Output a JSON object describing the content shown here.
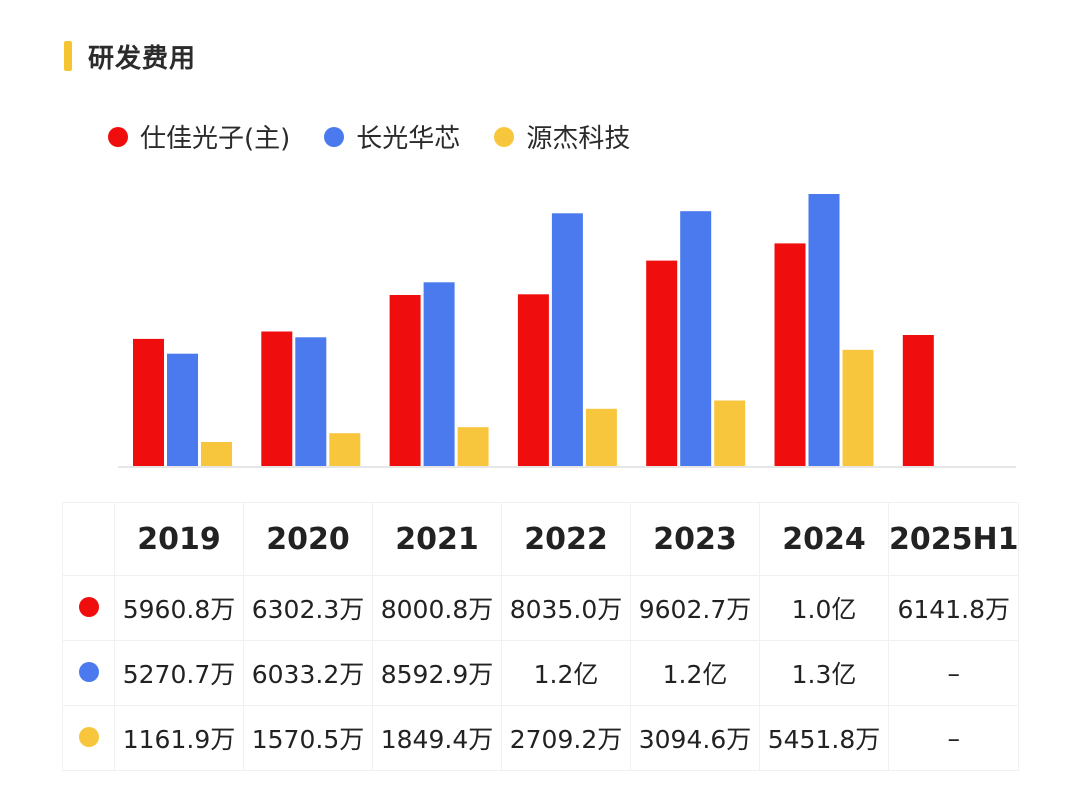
{
  "title": "研发费用",
  "colors": {
    "accent": "#f5c431",
    "red": "#f00d0d",
    "blue": "#4a7aed",
    "yellow": "#f8c63c"
  },
  "chart_data": {
    "type": "bar",
    "categories": [
      "2019",
      "2020",
      "2021",
      "2022",
      "2023",
      "2024",
      "2025H1"
    ],
    "unit": "万元",
    "series": [
      {
        "name": "仕佳光子(主)",
        "color": "#f00d0d",
        "values": [
          5960.8,
          6302.3,
          8000.8,
          8035.0,
          9602.7,
          10400,
          6141.8
        ]
      },
      {
        "name": "长光华芯",
        "color": "#4a7aed",
        "values": [
          5270.7,
          6033.2,
          8592.9,
          11800,
          11900,
          12700,
          null
        ]
      },
      {
        "name": "源杰科技",
        "color": "#f8c63c",
        "values": [
          1161.9,
          1570.5,
          1849.4,
          2709.2,
          3094.6,
          5451.8,
          null
        ]
      }
    ],
    "ylim": [
      0,
      12700
    ],
    "grid": false,
    "legend_position": "top-left"
  },
  "legend": [
    {
      "label": "仕佳光子(主)",
      "color": "#f00d0d"
    },
    {
      "label": "长光华芯",
      "color": "#4a7aed"
    },
    {
      "label": "源杰科技",
      "color": "#f8c63c"
    }
  ],
  "table": {
    "headers": [
      "2019",
      "2020",
      "2021",
      "2022",
      "2023",
      "2024",
      "2025H1"
    ],
    "rows": [
      {
        "color": "#f00d0d",
        "cells": [
          "5960.8万",
          "6302.3万",
          "8000.8万",
          "8035.0万",
          "9602.7万",
          "1.0亿",
          "6141.8万"
        ]
      },
      {
        "color": "#4a7aed",
        "cells": [
          "5270.7万",
          "6033.2万",
          "8592.9万",
          "1.2亿",
          "1.2亿",
          "1.3亿",
          "–"
        ]
      },
      {
        "color": "#f8c63c",
        "cells": [
          "1161.9万",
          "1570.5万",
          "1849.4万",
          "2709.2万",
          "3094.6万",
          "5451.8万",
          "–"
        ]
      }
    ]
  }
}
